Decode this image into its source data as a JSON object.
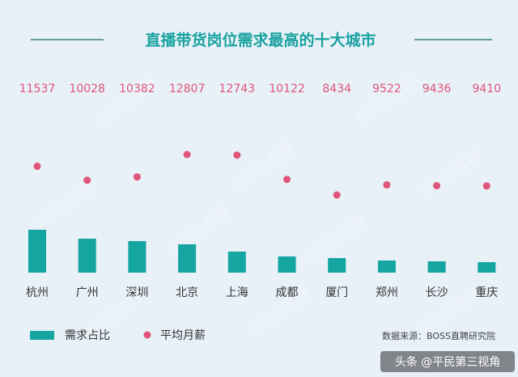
{
  "colors": {
    "background": "#e8f0f8",
    "bar": "#15a6a2",
    "dot": "#e0557a",
    "salary_text": "#e0557a",
    "title": "#1aa2a0",
    "title_rule": "#1a6b6b",
    "city_text": "#333333",
    "watermark_bg": "#2b2b2b",
    "faint_watermark": "#ffffff"
  },
  "legend": {
    "bar_label": "需求占比",
    "dot_label": "平均月薪"
  },
  "source": "数据来源：BOSS直聘研究院",
  "watermark": "头条 @平民第三视角",
  "faint_watermark": "BOSS直聘",
  "chart_data": {
    "type": "bar",
    "title": "直播带货岗位需求最高的十大城市",
    "categories": [
      "杭州",
      "广州",
      "深圳",
      "北京",
      "上海",
      "成都",
      "厦门",
      "郑州",
      "长沙",
      "重庆"
    ],
    "series": [
      {
        "name": "需求占比",
        "type": "bar",
        "values": [
          53,
          42,
          39,
          35,
          26,
          20,
          18,
          15,
          14,
          13
        ]
      },
      {
        "name": "平均月薪",
        "type": "scatter",
        "values": [
          11537,
          10028,
          10382,
          12807,
          12743,
          10122,
          8434,
          9522,
          9436,
          9410
        ]
      }
    ],
    "salary_labels": [
      "11537",
      "10028",
      "10382",
      "12807",
      "12743",
      "10122",
      "8434",
      "9522",
      "9436",
      "9410"
    ],
    "grid": false,
    "legend_position": "bottom-left"
  }
}
